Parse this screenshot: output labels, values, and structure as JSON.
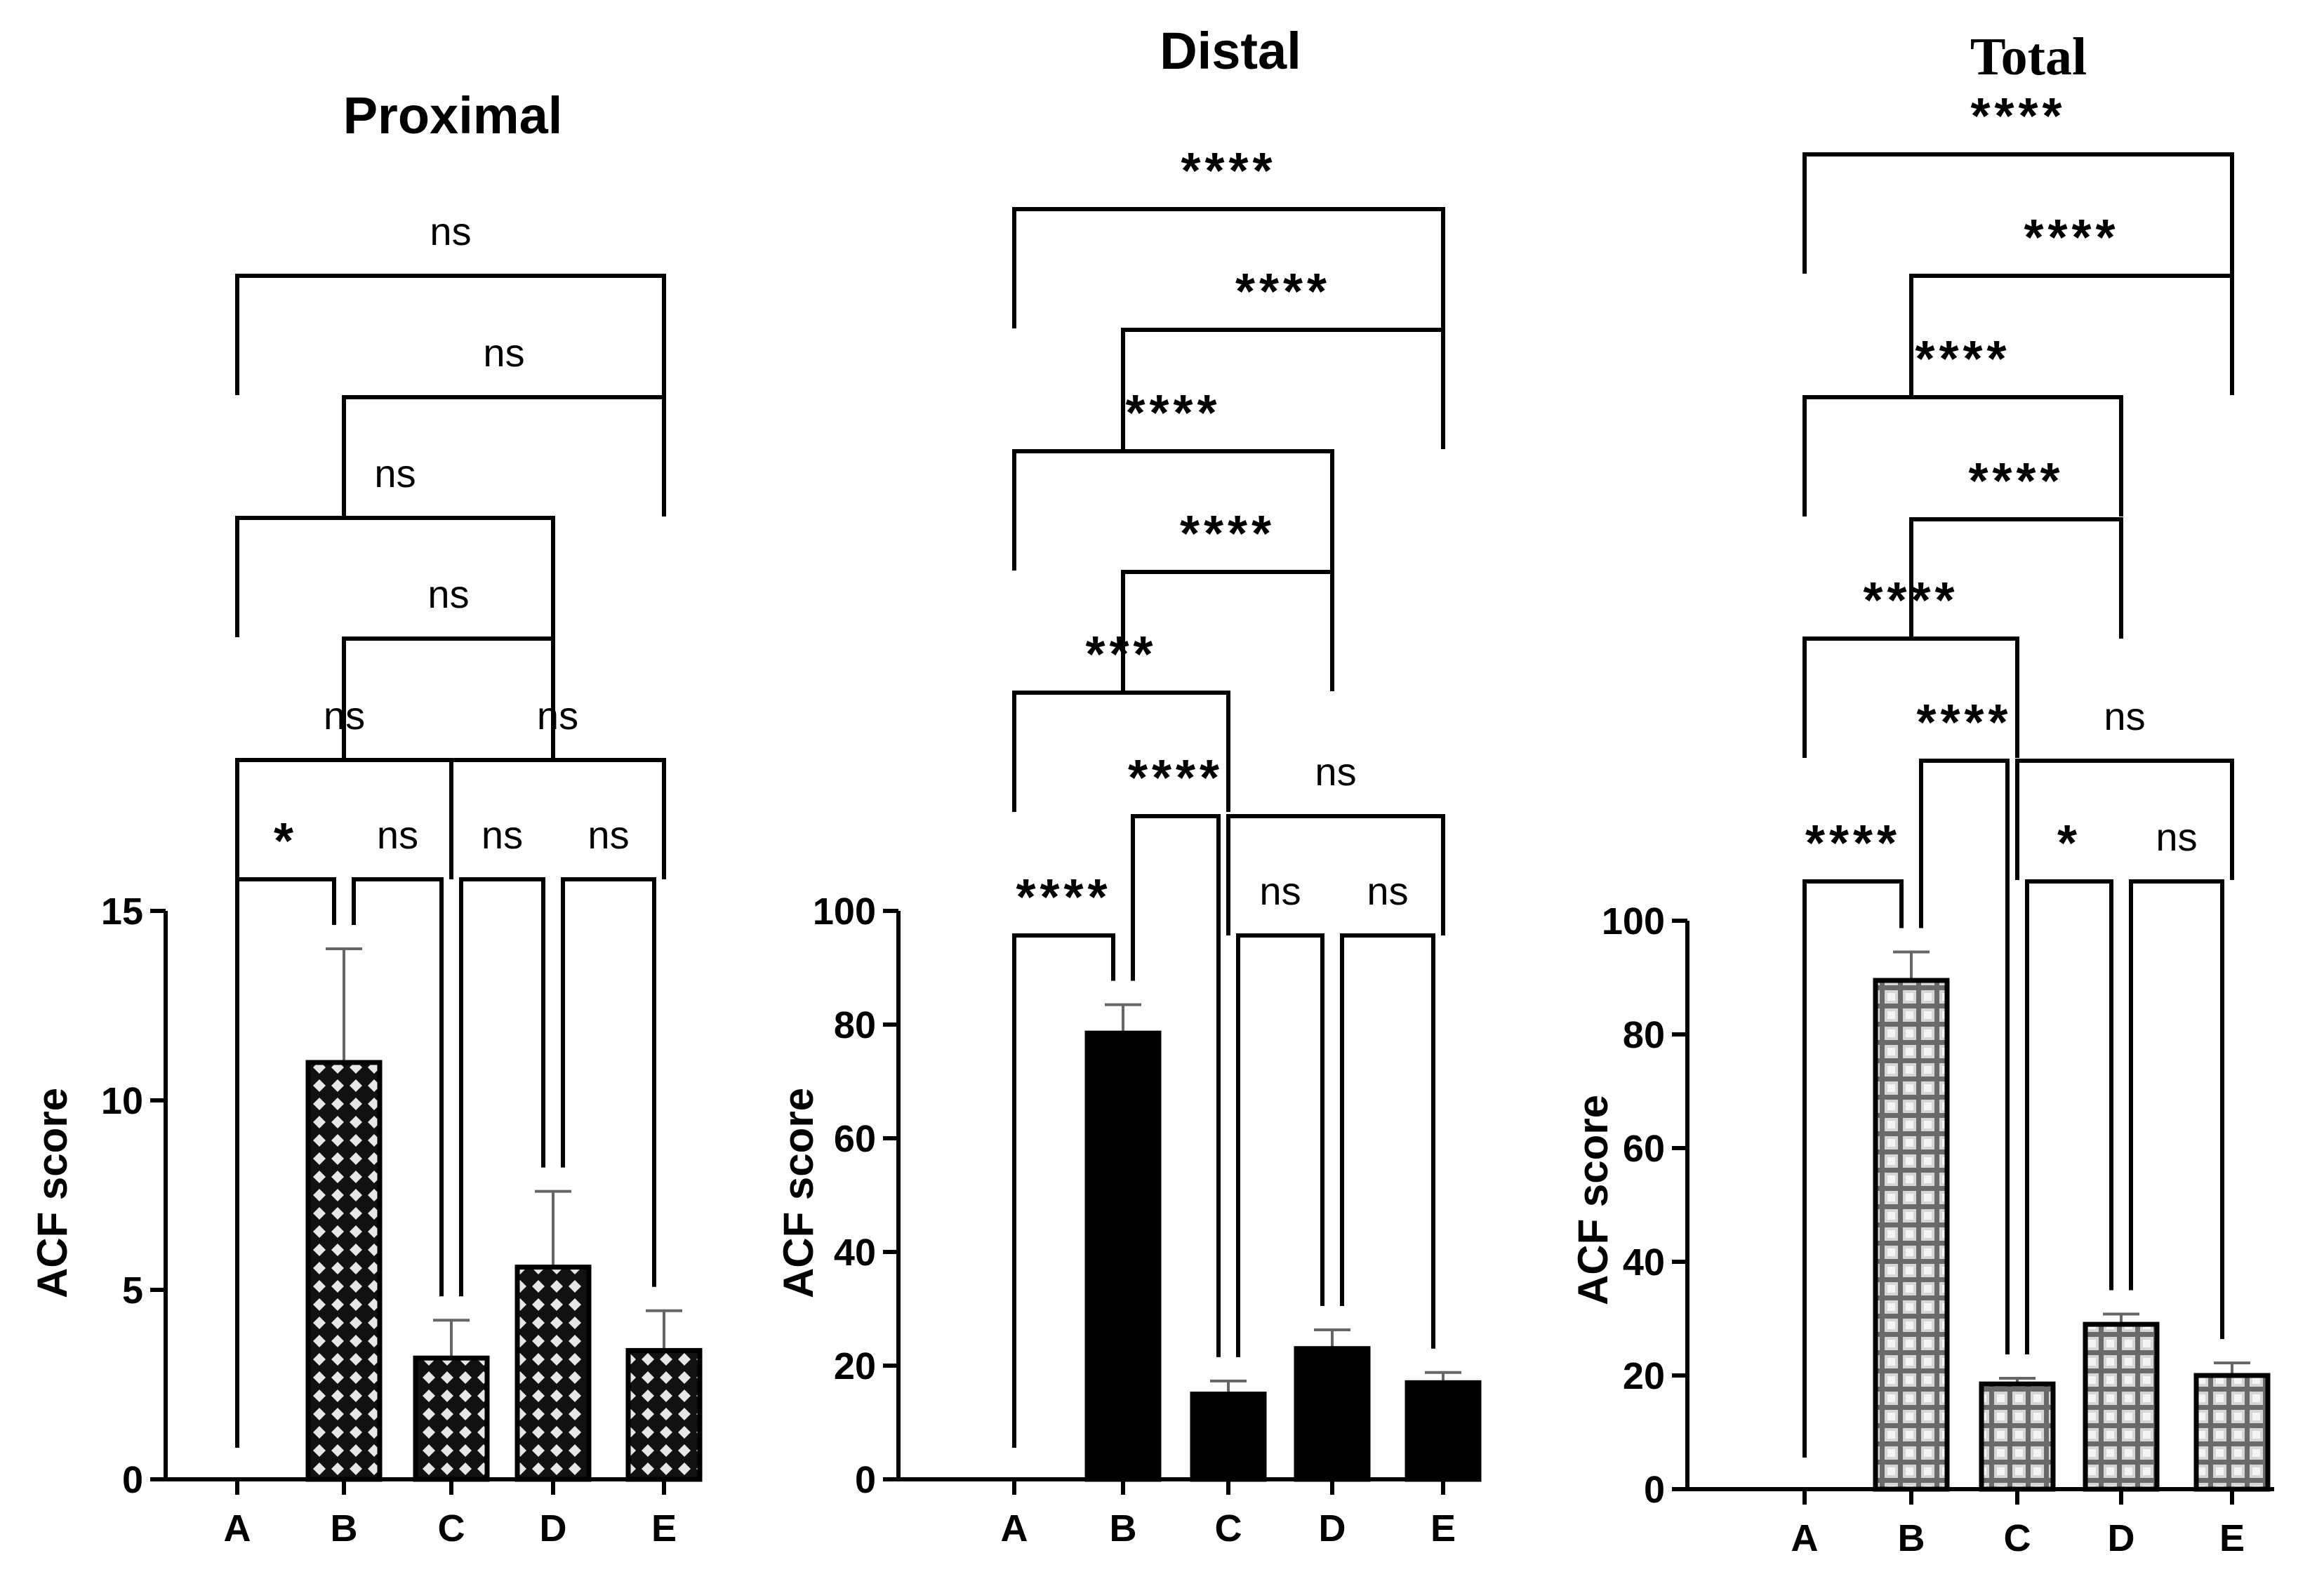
{
  "chart_data": [
    {
      "type": "bar",
      "title": "Proximal",
      "title_font": "sans",
      "ylabel": "ACF score",
      "categories": [
        "A",
        "B",
        "C",
        "D",
        "E"
      ],
      "values": [
        0,
        11,
        3.2,
        5.6,
        3.4
      ],
      "errors": [
        0,
        3,
        1.0,
        2.0,
        1.05
      ],
      "ylim": [
        0,
        15
      ],
      "yticks": [
        0,
        5,
        10,
        15
      ],
      "pattern": "diamond",
      "comparisons": [
        {
          "from": "A",
          "to": "B",
          "label": "*"
        },
        {
          "from": "B",
          "to": "C",
          "label": "ns"
        },
        {
          "from": "C",
          "to": "D",
          "label": "ns"
        },
        {
          "from": "D",
          "to": "E",
          "label": "ns"
        },
        {
          "from": "A",
          "to": "C",
          "label": "ns"
        },
        {
          "from": "C",
          "to": "E",
          "label": "ns"
        },
        {
          "from": "B",
          "to": "D",
          "label": "ns"
        },
        {
          "from": "A",
          "to": "D",
          "label": "ns"
        },
        {
          "from": "B",
          "to": "E",
          "label": "ns"
        },
        {
          "from": "A",
          "to": "E",
          "label": "ns"
        }
      ]
    },
    {
      "type": "bar",
      "title": "Distal",
      "title_font": "sans",
      "ylabel": "ACF score",
      "categories": [
        "A",
        "B",
        "C",
        "D",
        "E"
      ],
      "values": [
        0,
        78.5,
        15,
        23,
        17
      ],
      "errors": [
        0,
        5,
        2.3,
        3.3,
        1.8
      ],
      "ylim": [
        0,
        100
      ],
      "yticks": [
        0,
        20,
        40,
        60,
        80,
        100
      ],
      "pattern": "solid",
      "comparisons": [
        {
          "from": "A",
          "to": "B",
          "label": "****"
        },
        {
          "from": "C",
          "to": "D",
          "label": "ns"
        },
        {
          "from": "D",
          "to": "E",
          "label": "ns"
        },
        {
          "from": "B",
          "to": "C",
          "label": "****"
        },
        {
          "from": "C",
          "to": "E",
          "label": "ns"
        },
        {
          "from": "A",
          "to": "C",
          "label": "***"
        },
        {
          "from": "B",
          "to": "D",
          "label": "****"
        },
        {
          "from": "A",
          "to": "D",
          "label": "****"
        },
        {
          "from": "B",
          "to": "E",
          "label": "****"
        },
        {
          "from": "A",
          "to": "E",
          "label": "****"
        }
      ]
    },
    {
      "type": "bar",
      "title": "Total",
      "title_font": "serif",
      "ylabel": "ACF score",
      "categories": [
        "A",
        "B",
        "C",
        "D",
        "E"
      ],
      "values": [
        0,
        89.5,
        18.5,
        29,
        20
      ],
      "errors": [
        0,
        5,
        1,
        1.8,
        2.2
      ],
      "ylim": [
        0,
        100
      ],
      "yticks": [
        0,
        20,
        40,
        60,
        80,
        100
      ],
      "pattern": "grid",
      "comparisons": [
        {
          "from": "A",
          "to": "B",
          "label": "****"
        },
        {
          "from": "C",
          "to": "D",
          "label": "*"
        },
        {
          "from": "D",
          "to": "E",
          "label": "ns"
        },
        {
          "from": "B",
          "to": "C",
          "label": "****"
        },
        {
          "from": "C",
          "to": "E",
          "label": "ns"
        },
        {
          "from": "A",
          "to": "C",
          "label": "****"
        },
        {
          "from": "B",
          "to": "D",
          "label": "****"
        },
        {
          "from": "A",
          "to": "D",
          "label": "****"
        },
        {
          "from": "B",
          "to": "E",
          "label": "****"
        },
        {
          "from": "A",
          "to": "E",
          "label": "****"
        }
      ]
    }
  ]
}
